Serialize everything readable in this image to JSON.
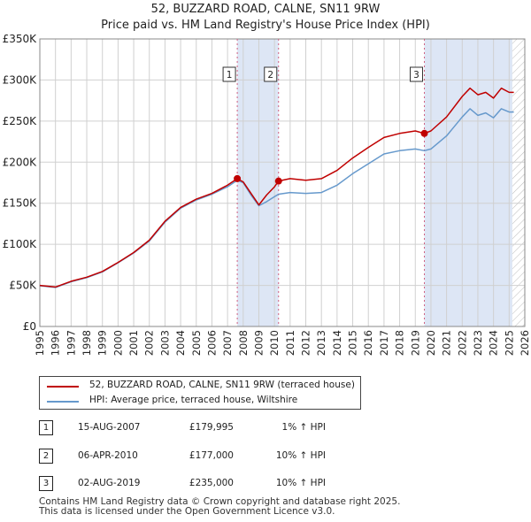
{
  "title_line1": "52, BUZZARD ROAD, CALNE, SN11 9RW",
  "title_line2": "Price paid vs. HM Land Registry's House Price Index (HPI)",
  "colors": {
    "price": "#c00000",
    "hpi": "#6699cc",
    "shade": "#dde6f5",
    "grid": "#d0d0d0"
  },
  "legend": {
    "price_label": "52, BUZZARD ROAD, CALNE, SN11 9RW (terraced house)",
    "hpi_label": "HPI: Average price, terraced house, Wiltshire"
  },
  "sales": [
    {
      "id": "1",
      "date": "15-AUG-2007",
      "price": "£179,995",
      "hpi": "1% ↑ HPI"
    },
    {
      "id": "2",
      "date": "06-APR-2010",
      "price": "£177,000",
      "hpi": "10% ↑ HPI"
    },
    {
      "id": "3",
      "date": "02-AUG-2019",
      "price": "£235,000",
      "hpi": "10% ↑ HPI"
    }
  ],
  "footer": {
    "line1": "Contains HM Land Registry data © Crown copyright and database right 2025.",
    "line2": "This data is licensed under the Open Government Licence v3.0."
  },
  "chart_data": {
    "type": "line",
    "title": "52, BUZZARD ROAD, CALNE, SN11 9RW",
    "subtitle": "Price paid vs. HM Land Registry's House Price Index (HPI)",
    "xlabel": "",
    "ylabel": "",
    "xlim": [
      1995,
      2026
    ],
    "ylim": [
      0,
      350000
    ],
    "x_ticks": [
      1995,
      1996,
      1997,
      1998,
      1999,
      2000,
      2001,
      2002,
      2003,
      2004,
      2005,
      2006,
      2007,
      2008,
      2009,
      2010,
      2011,
      2012,
      2013,
      2014,
      2015,
      2016,
      2017,
      2018,
      2019,
      2020,
      2021,
      2022,
      2023,
      2024,
      2025,
      2026
    ],
    "y_ticks": [
      0,
      50000,
      100000,
      150000,
      200000,
      250000,
      300000,
      350000
    ],
    "y_tick_labels": [
      "£0",
      "£50K",
      "£100K",
      "£150K",
      "£200K",
      "£250K",
      "£300K",
      "£350K"
    ],
    "grid": true,
    "shaded_ranges": [
      [
        2007.62,
        2010.26
      ],
      [
        2019.58,
        2025.2
      ]
    ],
    "future_hatch_from": 2025.2,
    "series": [
      {
        "name": "52, BUZZARD ROAD, CALNE, SN11 9RW (terraced house)",
        "x": [
          1995,
          1996,
          1997,
          1998,
          1999,
          2000,
          2001,
          2002,
          2003,
          2004,
          2005,
          2006,
          2007,
          2007.62,
          2008,
          2008.5,
          2009,
          2009.5,
          2010,
          2010.26,
          2011,
          2012,
          2013,
          2014,
          2015,
          2016,
          2017,
          2018,
          2019,
          2019.58,
          2020,
          2021,
          2022,
          2022.5,
          2023,
          2023.5,
          2024,
          2024.5,
          2025,
          2025.3
        ],
        "values": [
          50000,
          48000,
          55000,
          60000,
          67000,
          78000,
          90000,
          105000,
          128000,
          145000,
          155000,
          162000,
          172000,
          179995,
          176000,
          162000,
          148000,
          160000,
          170000,
          177000,
          180000,
          178000,
          180000,
          190000,
          205000,
          218000,
          230000,
          235000,
          238000,
          235000,
          238000,
          255000,
          280000,
          290000,
          282000,
          285000,
          278000,
          290000,
          285000,
          285000
        ]
      },
      {
        "name": "HPI: Average price, terraced house, Wiltshire",
        "x": [
          1995,
          1996,
          1997,
          1998,
          1999,
          2000,
          2001,
          2002,
          2003,
          2004,
          2005,
          2006,
          2007,
          2007.62,
          2008,
          2008.5,
          2009,
          2009.5,
          2010,
          2010.26,
          2011,
          2012,
          2013,
          2014,
          2015,
          2016,
          2017,
          2018,
          2019,
          2019.58,
          2020,
          2021,
          2022,
          2022.5,
          2023,
          2023.5,
          2024,
          2024.5,
          2025,
          2025.3
        ],
        "values": [
          49500,
          47500,
          54500,
          59500,
          66500,
          77500,
          89500,
          104000,
          127000,
          144000,
          154000,
          161000,
          170000,
          178000,
          175000,
          160000,
          147000,
          152000,
          158000,
          161000,
          163000,
          162000,
          163000,
          172000,
          186000,
          198000,
          210000,
          214000,
          216000,
          214000,
          216000,
          232000,
          255000,
          265000,
          257000,
          260000,
          254000,
          265000,
          261000,
          261000
        ]
      }
    ],
    "sale_points": [
      {
        "label": "1",
        "x": 2007.62,
        "value": 179995
      },
      {
        "label": "2",
        "x": 2010.26,
        "value": 177000
      },
      {
        "label": "3",
        "x": 2019.58,
        "value": 235000
      }
    ]
  }
}
